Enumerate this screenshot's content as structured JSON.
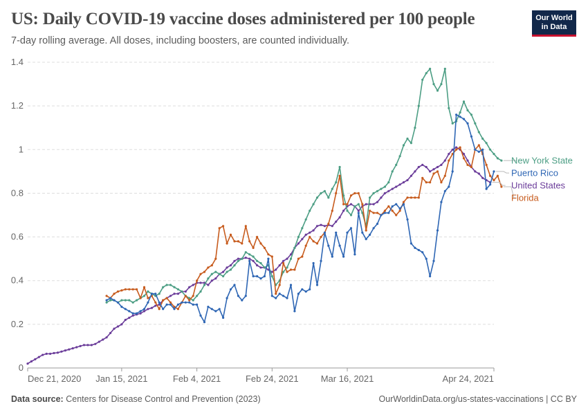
{
  "header": {
    "title": "US: Daily COVID-19 vaccine doses administered per 100 people",
    "subtitle": "7-day rolling average. All doses, including boosters, are counted individually.",
    "logo_line1": "Our World",
    "logo_line2": "in Data"
  },
  "footer": {
    "source_label": "Data source:",
    "source_text": "Centers for Disease Control and Prevention (2023)",
    "url": "OurWorldinData.org/us-states-vaccinations | CC BY"
  },
  "colors": {
    "New York State": "#4c9e84",
    "Puerto Rico": "#2e66b4",
    "United States": "#6b3d9a",
    "Florida": "#c75b1d"
  },
  "chart_data": {
    "type": "line",
    "title": "US: Daily COVID-19 vaccine doses administered per 100 people",
    "subtitle": "7-day rolling average. All doses, including boosters, are counted individually.",
    "x_start": "2020-12-21",
    "x_end": "2021-04-24",
    "x_ticks": [
      "Dec 21, 2020",
      "Jan 15, 2021",
      "Feb 4, 2021",
      "Feb 24, 2021",
      "Mar 16, 2021",
      "Apr 24, 2021"
    ],
    "y_ticks": [
      "0",
      "0.2",
      "0.4",
      "0.6",
      "0.8",
      "1",
      "1.2",
      "1.4"
    ],
    "ylim": [
      0,
      1.4
    ],
    "grid": "horizontal dashed",
    "legend": "right of lines, labels at line ends",
    "series": [
      {
        "name": "United States",
        "start": "2020-12-21",
        "values": [
          0.02,
          0.03,
          0.04,
          0.05,
          0.06,
          0.065,
          0.065,
          0.068,
          0.07,
          0.075,
          0.08,
          0.085,
          0.09,
          0.095,
          0.1,
          0.105,
          0.105,
          0.105,
          0.11,
          0.12,
          0.13,
          0.14,
          0.16,
          0.18,
          0.19,
          0.2,
          0.22,
          0.23,
          0.24,
          0.245,
          0.25,
          0.26,
          0.27,
          0.275,
          0.285,
          0.29,
          0.31,
          0.32,
          0.33,
          0.34,
          0.34,
          0.35,
          0.35,
          0.37,
          0.38,
          0.39,
          0.39,
          0.39,
          0.38,
          0.4,
          0.41,
          0.43,
          0.44,
          0.46,
          0.47,
          0.49,
          0.5,
          0.5,
          0.505,
          0.5,
          0.49,
          0.47,
          0.46,
          0.46,
          0.45,
          0.44,
          0.45,
          0.47,
          0.49,
          0.5,
          0.52,
          0.55,
          0.57,
          0.59,
          0.61,
          0.62,
          0.63,
          0.65,
          0.655,
          0.65,
          0.655,
          0.65,
          0.67,
          0.69,
          0.72,
          0.74,
          0.75,
          0.74,
          0.72,
          0.74,
          0.75,
          0.75,
          0.75,
          0.76,
          0.78,
          0.8,
          0.81,
          0.82,
          0.83,
          0.84,
          0.85,
          0.86,
          0.88,
          0.9,
          0.92,
          0.93,
          0.92,
          0.9,
          0.91,
          0.92,
          0.93,
          0.95,
          0.98,
          1.0,
          1.01,
          1.0,
          0.98,
          0.95,
          0.92,
          0.9,
          0.89,
          0.87,
          0.86,
          0.85
        ]
      },
      {
        "name": "New York State",
        "start": "2021-01-11",
        "values": [
          0.3,
          0.31,
          0.31,
          0.3,
          0.31,
          0.31,
          0.31,
          0.3,
          0.31,
          0.32,
          0.33,
          0.35,
          0.34,
          0.33,
          0.34,
          0.37,
          0.38,
          0.38,
          0.37,
          0.36,
          0.35,
          0.33,
          0.32,
          0.31,
          0.33,
          0.35,
          0.38,
          0.41,
          0.43,
          0.44,
          0.43,
          0.42,
          0.44,
          0.45,
          0.47,
          0.49,
          0.5,
          0.53,
          0.52,
          0.51,
          0.49,
          0.48,
          0.46,
          0.47,
          0.42,
          0.38,
          0.4,
          0.44,
          0.46,
          0.5,
          0.55,
          0.6,
          0.64,
          0.68,
          0.72,
          0.75,
          0.78,
          0.8,
          0.81,
          0.78,
          0.82,
          0.85,
          0.92,
          0.79,
          0.72,
          0.7,
          0.74,
          0.75,
          0.71,
          0.65,
          0.78,
          0.8,
          0.81,
          0.82,
          0.83,
          0.85,
          0.9,
          0.93,
          0.97,
          1.02,
          1.05,
          1.03,
          1.1,
          1.2,
          1.32,
          1.35,
          1.37,
          1.3,
          1.27,
          1.3,
          1.37,
          1.19,
          1.12,
          1.13,
          1.17,
          1.22,
          1.18,
          1.16,
          1.12,
          1.08,
          1.05,
          1.03,
          1.0,
          0.98,
          0.96,
          0.95
        ]
      },
      {
        "name": "Florida",
        "start": "2021-01-11",
        "values": [
          0.33,
          0.32,
          0.34,
          0.35,
          0.355,
          0.36,
          0.36,
          0.36,
          0.36,
          0.32,
          0.37,
          0.32,
          0.33,
          0.3,
          0.27,
          0.31,
          0.32,
          0.3,
          0.28,
          0.27,
          0.3,
          0.33,
          0.31,
          0.33,
          0.4,
          0.43,
          0.44,
          0.46,
          0.47,
          0.5,
          0.64,
          0.65,
          0.57,
          0.61,
          0.58,
          0.58,
          0.57,
          0.65,
          0.58,
          0.55,
          0.6,
          0.57,
          0.55,
          0.52,
          0.51,
          0.34,
          0.38,
          0.48,
          0.44,
          0.45,
          0.45,
          0.5,
          0.51,
          0.56,
          0.6,
          0.58,
          0.57,
          0.6,
          0.62,
          0.66,
          0.72,
          0.8,
          0.88,
          0.75,
          0.75,
          0.79,
          0.8,
          0.8,
          0.75,
          0.63,
          0.72,
          0.71,
          0.71,
          0.7,
          0.72,
          0.74,
          0.72,
          0.7,
          0.72,
          0.76,
          0.78,
          0.78,
          0.78,
          0.78,
          0.87,
          0.85,
          0.85,
          0.89,
          0.9,
          0.85,
          0.88,
          0.95,
          0.98,
          1.0,
          1.01,
          0.96,
          0.93,
          0.92,
          1.0,
          1.02,
          0.98,
          0.93,
          0.88,
          0.86,
          0.88,
          0.83
        ]
      },
      {
        "name": "Puerto Rico",
        "start": "2021-01-11",
        "values": [
          0.31,
          0.32,
          0.31,
          0.3,
          0.28,
          0.27,
          0.26,
          0.25,
          0.25,
          0.26,
          0.27,
          0.3,
          0.34,
          0.34,
          0.3,
          0.27,
          0.29,
          0.29,
          0.27,
          0.29,
          0.3,
          0.3,
          0.3,
          0.29,
          0.29,
          0.24,
          0.21,
          0.28,
          0.27,
          0.26,
          0.27,
          0.23,
          0.32,
          0.36,
          0.38,
          0.33,
          0.31,
          0.33,
          0.49,
          0.42,
          0.42,
          0.41,
          0.42,
          0.5,
          0.33,
          0.32,
          0.34,
          0.33,
          0.32,
          0.38,
          0.26,
          0.34,
          0.36,
          0.35,
          0.36,
          0.48,
          0.38,
          0.49,
          0.62,
          0.56,
          0.51,
          0.62,
          0.56,
          0.51,
          0.62,
          0.64,
          0.52,
          0.71,
          0.62,
          0.59,
          0.61,
          0.64,
          0.66,
          0.7,
          0.71,
          0.71,
          0.74,
          0.75,
          0.73,
          0.75,
          0.68,
          0.57,
          0.55,
          0.54,
          0.53,
          0.5,
          0.42,
          0.49,
          0.63,
          0.76,
          0.81,
          0.83,
          0.9,
          1.16,
          1.15,
          1.14,
          1.12,
          1.06,
          1.0,
          0.99,
          1.0,
          0.82,
          0.84,
          0.9
        ]
      }
    ]
  }
}
